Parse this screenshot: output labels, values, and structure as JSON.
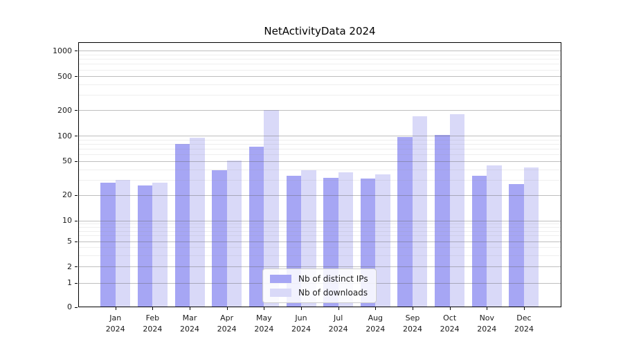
{
  "title": "NetActivityData 2024",
  "colors": {
    "series_distinct_ips": "#a6a6f4",
    "series_downloads": "#d9d9f8",
    "grid_major": "#b0b0b0",
    "grid_minor": "#e8e8e8",
    "spine": "#000000",
    "tick_label": "#1a1a1a"
  },
  "legend": {
    "items": [
      {
        "label": "Nb of distinct IPs"
      },
      {
        "label": "Nb of downloads"
      }
    ]
  },
  "chart_data": {
    "type": "bar",
    "title": "NetActivityData 2024",
    "xlabel": "",
    "ylabel": "",
    "yscale": "symlog",
    "grid": true,
    "legend_position": "lower center",
    "ylim": [
      0,
      1260
    ],
    "yticks": [
      0,
      1,
      2,
      5,
      10,
      20,
      50,
      100,
      200,
      500,
      1000
    ],
    "categories": [
      "Jan 2024",
      "Feb 2024",
      "Mar 2024",
      "Apr 2024",
      "May 2024",
      "Jun 2024",
      "Jul 2024",
      "Aug 2024",
      "Sep 2024",
      "Oct 2024",
      "Nov 2024",
      "Dec 2024"
    ],
    "series": [
      {
        "name": "Nb of distinct IPs",
        "color": "#a6a6f4",
        "values": [
          28,
          26,
          80,
          39,
          74,
          34,
          32,
          31,
          96,
          102,
          34,
          27
        ]
      },
      {
        "name": "Nb of downloads",
        "color": "#d9d9f8",
        "values": [
          30,
          28,
          94,
          51,
          199,
          39,
          37,
          35,
          168,
          180,
          45,
          42
        ]
      }
    ]
  }
}
